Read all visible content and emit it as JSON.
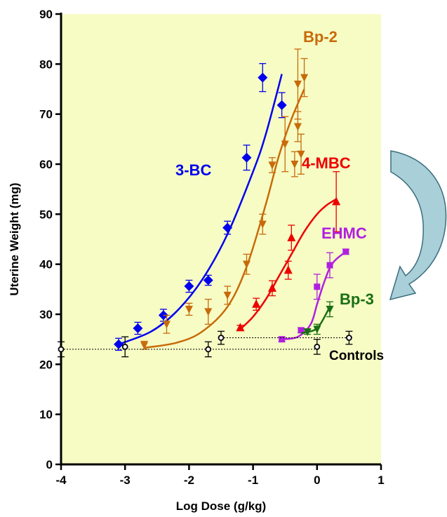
{
  "chart_data": {
    "type": "scatter",
    "xlabel": "Log Dose (g/kg)",
    "ylabel": "Uterine Weight (mg)",
    "xlim": [
      -4,
      1
    ],
    "ylim": [
      0,
      90
    ],
    "xticks": [
      "-4",
      "-3",
      "-2",
      "-1",
      "0",
      "1"
    ],
    "yticks": [
      "0",
      "10",
      "20",
      "30",
      "40",
      "50",
      "60",
      "70",
      "80",
      "90"
    ],
    "background": "#f6fcc4",
    "grid": false,
    "series": [
      {
        "name": "3-BC",
        "color": "#0000ee",
        "marker": "diamond",
        "points": [
          {
            "x": -3.1,
            "y": 24.0,
            "err": 1.2
          },
          {
            "x": -2.8,
            "y": 27.2,
            "err": 1.2
          },
          {
            "x": -2.4,
            "y": 29.8,
            "err": 1.2
          },
          {
            "x": -2.0,
            "y": 35.6,
            "err": 1.2
          },
          {
            "x": -1.7,
            "y": 36.8,
            "err": 1.0
          },
          {
            "x": -1.4,
            "y": 47.3,
            "err": 1.3
          },
          {
            "x": -1.1,
            "y": 61.3,
            "err": 2.5
          },
          {
            "x": -0.85,
            "y": 77.3,
            "err": 2.8
          },
          {
            "x": -0.55,
            "y": 71.8,
            "err": 2.5
          }
        ],
        "curve": [
          [
            -3.1,
            24.0
          ],
          [
            -2.6,
            26.5
          ],
          [
            -2.2,
            30.5
          ],
          [
            -1.8,
            36.8
          ],
          [
            -1.4,
            46.0
          ],
          [
            -1.0,
            58.5
          ],
          [
            -0.8,
            66.0
          ],
          [
            -0.55,
            78.0
          ]
        ]
      },
      {
        "name": "Bp-2",
        "color": "#c86a0a",
        "marker": "triangle-down",
        "points": [
          {
            "x": -2.7,
            "y": 23.8,
            "err": 0.8
          },
          {
            "x": -2.35,
            "y": 28.0,
            "err": 1.8
          },
          {
            "x": -2.0,
            "y": 31.0,
            "err": 1.2
          },
          {
            "x": -1.7,
            "y": 30.5,
            "err": 2.5
          },
          {
            "x": -1.4,
            "y": 33.8,
            "err": 1.8
          },
          {
            "x": -1.1,
            "y": 40.0,
            "err": 2.0
          },
          {
            "x": -0.85,
            "y": 48.0,
            "err": 2.0
          },
          {
            "x": -0.7,
            "y": 59.8,
            "err": 1.5
          },
          {
            "x": -0.5,
            "y": 64.0,
            "err": 5.5
          },
          {
            "x": -0.35,
            "y": 60.0,
            "err": 2.5
          },
          {
            "x": -0.3,
            "y": 67.5,
            "err": 3.0
          },
          {
            "x": -0.3,
            "y": 76.0,
            "err": 7.0
          },
          {
            "x": -0.25,
            "y": 62.0,
            "err": 4.0
          },
          {
            "x": -0.2,
            "y": 77.3,
            "err": 3.8
          }
        ],
        "curve": [
          [
            -2.7,
            23.3
          ],
          [
            -2.2,
            24.3
          ],
          [
            -1.8,
            26.5
          ],
          [
            -1.4,
            31.5
          ],
          [
            -1.1,
            39.5
          ],
          [
            -0.8,
            52.0
          ],
          [
            -0.6,
            61.5
          ],
          [
            -0.4,
            69.0
          ],
          [
            -0.2,
            75.0
          ]
        ]
      },
      {
        "name": "4-MBC",
        "color": "#ee0000",
        "marker": "triangle-up",
        "points": [
          {
            "x": -1.2,
            "y": 27.3,
            "err": 0.5
          },
          {
            "x": -0.95,
            "y": 32.0,
            "err": 1.2
          },
          {
            "x": -0.7,
            "y": 35.2,
            "err": 1.5
          },
          {
            "x": -0.45,
            "y": 38.8,
            "err": 1.8
          },
          {
            "x": -0.4,
            "y": 45.3,
            "err": 2.5
          },
          {
            "x": 0.3,
            "y": 52.5,
            "err": 6.0
          }
        ],
        "curve": [
          [
            -1.2,
            27.0
          ],
          [
            -1.0,
            29.5
          ],
          [
            -0.8,
            33.0
          ],
          [
            -0.6,
            37.5
          ],
          [
            -0.4,
            42.0
          ],
          [
            -0.2,
            46.5
          ],
          [
            0.0,
            50.0
          ],
          [
            0.15,
            51.8
          ],
          [
            0.3,
            53.0
          ]
        ]
      },
      {
        "name": "EHMC",
        "color": "#b020e0",
        "marker": "square",
        "points": [
          {
            "x": -0.55,
            "y": 25.0,
            "err": 0.5
          },
          {
            "x": -0.25,
            "y": 26.8,
            "err": 0.5
          },
          {
            "x": 0.0,
            "y": 35.5,
            "err": 2.5
          },
          {
            "x": 0.2,
            "y": 39.8,
            "err": 2.5
          },
          {
            "x": 0.45,
            "y": 42.5,
            "err": 0.5
          }
        ],
        "curve": [
          [
            -0.55,
            25.0
          ],
          [
            -0.3,
            25.5
          ],
          [
            -0.1,
            28.0
          ],
          [
            0.0,
            32.0
          ],
          [
            0.1,
            36.0
          ],
          [
            0.2,
            39.3
          ],
          [
            0.3,
            41.0
          ],
          [
            0.45,
            42.5
          ]
        ]
      },
      {
        "name": "Bp-3",
        "color": "#1a6e14",
        "marker": "triangle-down",
        "points": [
          {
            "x": -0.15,
            "y": 26.5,
            "err": 0.5
          },
          {
            "x": 0.0,
            "y": 27.0,
            "err": 1.0
          },
          {
            "x": 0.2,
            "y": 31.0,
            "err": 1.5
          }
        ],
        "curve": [
          [
            -0.25,
            26.2
          ],
          [
            -0.05,
            26.8
          ],
          [
            0.05,
            28.0
          ],
          [
            0.2,
            31.5
          ]
        ]
      },
      {
        "name": "Controls",
        "color": "#000000",
        "marker": "open",
        "points": [
          {
            "x": -4.0,
            "y": 23.0,
            "err": 1.5
          },
          {
            "x": -3.0,
            "y": 23.5,
            "err": 2.0
          },
          {
            "x": -1.7,
            "y": 23.0,
            "err": 1.5
          },
          {
            "x": 0.0,
            "y": 23.5,
            "err": 1.5
          },
          {
            "x": -1.5,
            "y": 25.3,
            "err": 1.3
          },
          {
            "x": 0.5,
            "y": 25.3,
            "err": 1.3
          }
        ],
        "reference_lines": [
          {
            "x1": -4.0,
            "x2": 0.0,
            "y": 23.0
          },
          {
            "x1": -1.5,
            "x2": 0.5,
            "y": 25.3
          }
        ]
      }
    ],
    "arrow": {
      "color_fill": "#a9cfd8",
      "color_stroke": "#3a6e7e",
      "direction": "clockwise-down-left"
    }
  }
}
